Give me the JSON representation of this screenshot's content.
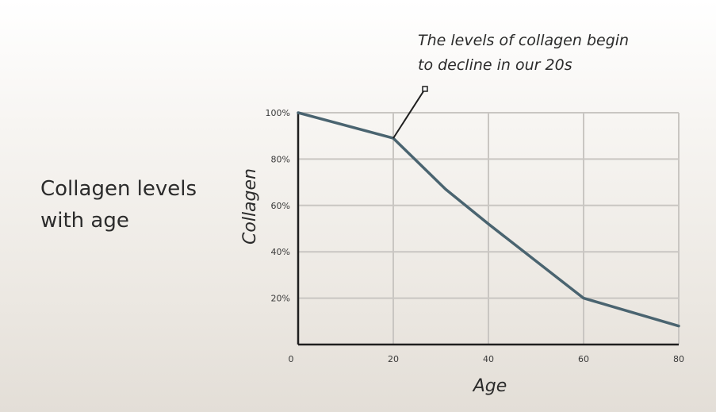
{
  "side_title": {
    "line1": "Collagen levels",
    "line2": "with age"
  },
  "chart_data": {
    "type": "line",
    "title": "",
    "xlabel": "Age",
    "ylabel": "Collagen",
    "xlim": [
      0,
      80
    ],
    "ylim": [
      0,
      100
    ],
    "x_ticks": [
      0,
      20,
      40,
      60,
      80
    ],
    "x_tick_labels": [
      "0",
      "20",
      "40",
      "60",
      "80"
    ],
    "y_ticks": [
      20,
      40,
      60,
      80,
      100
    ],
    "y_tick_labels": [
      "20%",
      "40%",
      "60%",
      "80%",
      "100%"
    ],
    "grid": true,
    "series": [
      {
        "x": [
          0,
          20,
          31,
          40,
          60,
          80
        ],
        "y": [
          100,
          89,
          67,
          52,
          20,
          8
        ],
        "color": "#4a6470"
      }
    ],
    "annotation": {
      "line1": "The levels of collagen begin",
      "line2": "to decline in our 20s",
      "target_x": 20,
      "target_y": 89
    }
  },
  "colors": {
    "grid": "#c9c6c2",
    "axis": "#1f1f1f",
    "line": "#4a6470"
  }
}
